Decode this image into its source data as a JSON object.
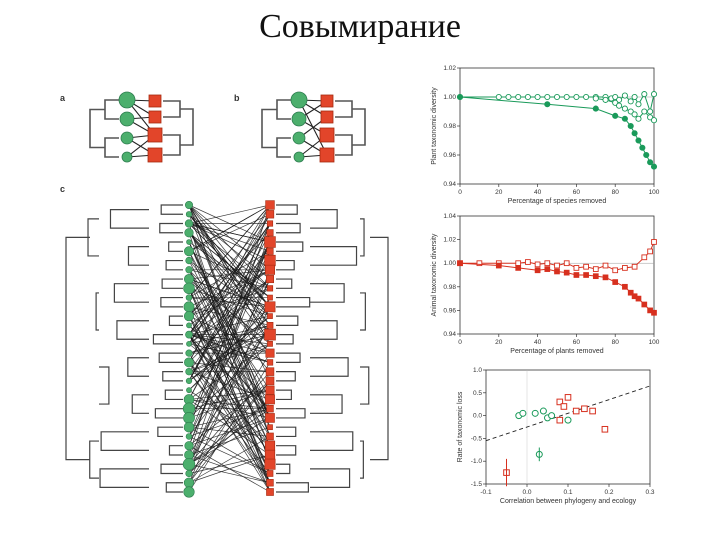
{
  "slide": {
    "title": "Совымирание"
  },
  "figure": {
    "panel_labels": {
      "a": "a",
      "b": "b",
      "c": "c"
    }
  },
  "chart_data": [
    {
      "type": "line",
      "panel": "a",
      "xlabel": "Percentage of species removed",
      "ylabel": "Plant taxonomic diversity",
      "xlim": [
        0,
        100
      ],
      "ylim": [
        0.94,
        1.02
      ],
      "xticks": [
        "0",
        "20",
        "40",
        "60",
        "80",
        "100"
      ],
      "yticks": [
        "1.02",
        "1.00",
        "0.98",
        "0.96",
        "0.94"
      ],
      "color": "#1a9a5a",
      "series": [
        {
          "marker": "open",
          "x": [
            0,
            20,
            25,
            30,
            35,
            40,
            45,
            50,
            55,
            60,
            65,
            70,
            75,
            78,
            80,
            82,
            85,
            88,
            90,
            92,
            95,
            98,
            100
          ],
          "y": [
            1.0,
            1.0,
            1.0,
            1.0,
            1.0,
            1.0,
            1.0,
            1.0,
            1.0,
            1.0,
            1.0,
            1.0,
            1.0,
            0.999,
            1.0,
            0.998,
            1.001,
            0.997,
            1.0,
            0.995,
            1.002,
            0.99,
            1.002
          ]
        },
        {
          "marker": "open",
          "x": [
            70,
            75,
            80,
            82,
            85,
            88,
            90,
            92,
            95,
            98,
            100
          ],
          "y": [
            0.999,
            0.998,
            0.996,
            0.994,
            0.992,
            0.99,
            0.988,
            0.985,
            0.99,
            0.986,
            0.984
          ]
        },
        {
          "marker": "filled",
          "x": [
            0,
            45,
            70,
            80,
            85,
            88,
            90,
            92,
            94,
            96,
            98,
            100
          ],
          "y": [
            1.0,
            0.995,
            0.992,
            0.987,
            0.985,
            0.98,
            0.975,
            0.97,
            0.965,
            0.96,
            0.955,
            0.952
          ]
        }
      ]
    },
    {
      "type": "line",
      "panel": "b",
      "xlabel": "Percentage of plants removed",
      "ylabel": "Animal taxonomic diversity",
      "xlim": [
        0,
        100
      ],
      "ylim": [
        0.94,
        1.04
      ],
      "xticks": [
        "0",
        "20",
        "40",
        "60",
        "80",
        "100"
      ],
      "yticks": [
        "1.04",
        "1.02",
        "1.00",
        "0.98",
        "0.96",
        "0.94"
      ],
      "color": "#d7301f",
      "series": [
        {
          "marker": "open",
          "x": [
            0,
            10,
            20,
            30,
            35,
            40,
            45,
            50,
            55,
            60,
            65,
            70,
            75,
            80,
            85,
            90,
            95,
            98,
            100
          ],
          "y": [
            1.0,
            1.0,
            1.0,
            1.0,
            1.001,
            0.999,
            1.0,
            0.998,
            1.0,
            0.996,
            0.997,
            0.995,
            0.998,
            0.994,
            0.996,
            0.997,
            1.005,
            1.01,
            1.018
          ]
        },
        {
          "marker": "filled",
          "x": [
            0,
            20,
            30,
            40,
            45,
            50,
            55,
            60,
            65,
            70,
            75,
            80,
            85,
            88,
            90,
            92,
            95,
            98,
            100
          ],
          "y": [
            1.0,
            0.998,
            0.996,
            0.994,
            0.995,
            0.993,
            0.992,
            0.99,
            0.99,
            0.989,
            0.988,
            0.984,
            0.98,
            0.975,
            0.972,
            0.97,
            0.965,
            0.96,
            0.958
          ]
        }
      ]
    },
    {
      "type": "scatter",
      "panel": "c",
      "xlabel": "Correlation between phylogeny and ecology",
      "ylabel": "Rate of taxonomic loss",
      "xlim": [
        -0.1,
        0.3
      ],
      "ylim": [
        -1.5,
        1.0
      ],
      "xticks": [
        "-0.1",
        "0.0",
        "0.1",
        "0.2",
        "0.3"
      ],
      "yticks": [
        "1.0",
        "0.5",
        "0.0",
        "-0.5",
        "-1.0",
        "-1.5"
      ],
      "series": [
        {
          "color": "#1a9a5a",
          "marker": "circle",
          "x": [
            -0.02,
            -0.01,
            0.02,
            0.04,
            0.05,
            0.06,
            0.03,
            0.1
          ],
          "y": [
            0.0,
            0.05,
            0.05,
            0.1,
            -0.05,
            0.0,
            -0.85,
            -0.1
          ]
        },
        {
          "color": "#d7301f",
          "marker": "square",
          "x": [
            -0.05,
            0.08,
            0.09,
            0.1,
            0.12,
            0.14,
            0.16,
            0.19,
            0.08
          ],
          "y": [
            -1.25,
            0.3,
            0.2,
            0.4,
            0.1,
            0.15,
            0.1,
            -0.3,
            -0.1
          ]
        }
      ],
      "trend": {
        "style": "dashed",
        "x": [
          -0.1,
          0.3
        ],
        "y": [
          -0.55,
          0.65
        ]
      }
    }
  ]
}
